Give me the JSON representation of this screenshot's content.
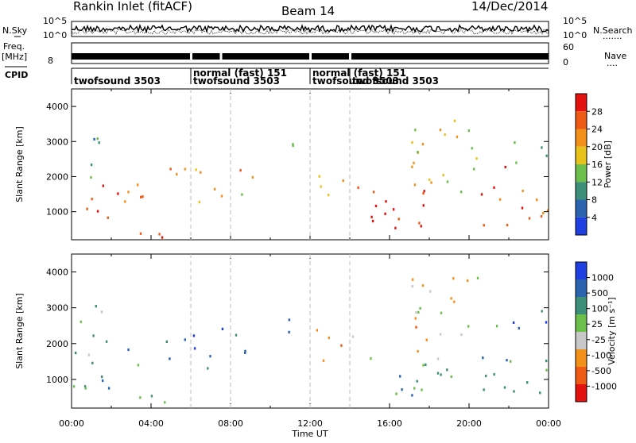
{
  "header": {
    "title": "Rankin Inlet (fitACF)",
    "beam": "Beam 14",
    "date": "14/Dec/2014"
  },
  "labels": {
    "nsky": "N.Sky",
    "nsearch": "N.Search",
    "freq": "Freq.",
    "freq_unit": "[MHz]",
    "nave": "Nave",
    "cpid": "CPID",
    "xlabel": "Time UT"
  },
  "ticks": {
    "noise_left": [
      "10^5",
      "10^0"
    ],
    "noise_right": [
      "10^5",
      "10^0"
    ],
    "freq_left": [
      "8"
    ],
    "nave_right": [
      "60",
      "0"
    ]
  },
  "cpid_modes": [
    {
      "label": "twofsound 3503",
      "start": 0.0,
      "end": 6.0,
      "row": 2
    },
    {
      "label": "normal (fast) 151",
      "start": 6.0,
      "end": 12.0,
      "row": 1
    },
    {
      "label": "twofsound 3503",
      "start": 6.0,
      "end": 12.0,
      "row": 2
    },
    {
      "label": "normal (fast) 151",
      "start": 12.0,
      "end": 14.0,
      "row": 1
    },
    {
      "label": "twofsound 3503",
      "start": 12.0,
      "end": 14.0,
      "row": 2
    },
    {
      "label": "twofsound 3503",
      "start": 14.0,
      "end": 24.0,
      "row": 2
    }
  ],
  "chart_data": [
    {
      "type": "heatmap",
      "title": "",
      "xlabel": "Time UT",
      "ylabel": "Slant Range [km]",
      "xlim": [
        0,
        24
      ],
      "ylim": [
        200,
        4500
      ],
      "x_ticks": [
        "00:00",
        "04:00",
        "08:00",
        "12:00",
        "16:00",
        "20:00",
        "00:00"
      ],
      "y_ticks": [
        1000,
        2000,
        3000,
        4000
      ],
      "colorbar": {
        "label": "Power [dB]",
        "ticks": [
          4,
          8,
          12,
          16,
          20,
          24,
          28
        ],
        "range": [
          0,
          30
        ],
        "colors": [
          "#1f3fe0",
          "#2a63b0",
          "#3e8f7a",
          "#6bbf4a",
          "#e8c21a",
          "#f39019",
          "#ef5a14",
          "#e3120f"
        ]
      },
      "regions": [
        {
          "t0": 0.0,
          "t1": 3.6,
          "r0": 700,
          "r1": 1900,
          "value": 24
        },
        {
          "t0": 0.3,
          "t1": 1.8,
          "r0": 1900,
          "r1": 3200,
          "value": 12
        },
        {
          "t0": 2.5,
          "t1": 4.9,
          "r0": 250,
          "r1": 700,
          "value": 26
        },
        {
          "t0": 4.7,
          "t1": 5.7,
          "r0": 1100,
          "r1": 2400,
          "value": 21
        },
        {
          "t0": 6.0,
          "t1": 7.6,
          "r0": 1200,
          "r1": 2500,
          "value": 20
        },
        {
          "t0": 8.0,
          "t1": 9.1,
          "r0": 1300,
          "r1": 2300,
          "value": 19
        },
        {
          "t0": 10.3,
          "t1": 11.2,
          "r0": 2300,
          "r1": 3200,
          "value": 12
        },
        {
          "t0": 11.9,
          "t1": 13.0,
          "r0": 1500,
          "r1": 2600,
          "value": 21
        },
        {
          "t0": 13.5,
          "t1": 14.6,
          "r0": 1500,
          "r1": 2300,
          "value": 22
        },
        {
          "t0": 15.0,
          "t1": 19.5,
          "r0": 500,
          "r1": 1700,
          "value": 27
        },
        {
          "t0": 17.0,
          "t1": 20.5,
          "r0": 1600,
          "r1": 4000,
          "value": 18
        },
        {
          "t0": 20.0,
          "t1": 24.0,
          "r0": 600,
          "r1": 1800,
          "value": 24
        },
        {
          "t0": 21.3,
          "t1": 22.0,
          "r0": 2300,
          "r1": 2700,
          "value": 27
        },
        {
          "t0": 22.0,
          "t1": 24.0,
          "r0": 2400,
          "r1": 3200,
          "value": 10
        }
      ]
    },
    {
      "type": "heatmap",
      "title": "",
      "xlabel": "Time UT",
      "ylabel": "Slant Range [km]",
      "xlim": [
        0,
        24
      ],
      "ylim": [
        200,
        4500
      ],
      "x_ticks": [
        "00:00",
        "04:00",
        "08:00",
        "12:00",
        "16:00",
        "20:00",
        "00:00"
      ],
      "y_ticks": [
        1000,
        2000,
        3000,
        4000
      ],
      "colorbar": {
        "label": "Velocity [m s⁻¹]",
        "ticks": [
          1000,
          500,
          100,
          25,
          -25,
          -100,
          -500,
          -1000
        ],
        "range": [
          -1200,
          1200
        ],
        "colors": [
          "#e3120f",
          "#ef5a14",
          "#f39019",
          "#c8c8c8",
          "#6bbf4a",
          "#3e8f7a",
          "#2a63b0",
          "#1f3fe0"
        ]
      },
      "regions": [
        {
          "t0": 0.0,
          "t1": 3.6,
          "r0": 700,
          "r1": 1900,
          "value": 350
        },
        {
          "t0": 0.3,
          "t1": 1.8,
          "r0": 1900,
          "r1": 3200,
          "value": 300
        },
        {
          "t0": 2.5,
          "t1": 4.9,
          "r0": 250,
          "r1": 700,
          "value": 60
        },
        {
          "t0": 4.7,
          "t1": 5.7,
          "r0": 1100,
          "r1": 2400,
          "value": 700
        },
        {
          "t0": 6.0,
          "t1": 7.6,
          "r0": 1200,
          "r1": 2500,
          "value": 800
        },
        {
          "t0": 8.0,
          "t1": 9.1,
          "r0": 1300,
          "r1": 2300,
          "value": 600
        },
        {
          "t0": 10.3,
          "t1": 11.2,
          "r0": 2300,
          "r1": 3200,
          "value": 700
        },
        {
          "t0": 11.9,
          "t1": 13.0,
          "r0": 1500,
          "r1": 2600,
          "value": -300
        },
        {
          "t0": 13.5,
          "t1": 14.6,
          "r0": 1500,
          "r1": 2300,
          "value": -300
        },
        {
          "t0": 15.0,
          "t1": 19.5,
          "r0": 500,
          "r1": 1700,
          "value": 350
        },
        {
          "t0": 17.0,
          "t1": 20.5,
          "r0": 1600,
          "r1": 4000,
          "value": -300
        },
        {
          "t0": 20.0,
          "t1": 24.0,
          "r0": 600,
          "r1": 1800,
          "value": 400
        },
        {
          "t0": 21.3,
          "t1": 22.0,
          "r0": 2300,
          "r1": 2700,
          "value": -300
        },
        {
          "t0": 22.0,
          "t1": 24.0,
          "r0": 2400,
          "r1": 3200,
          "value": 600
        }
      ]
    }
  ]
}
